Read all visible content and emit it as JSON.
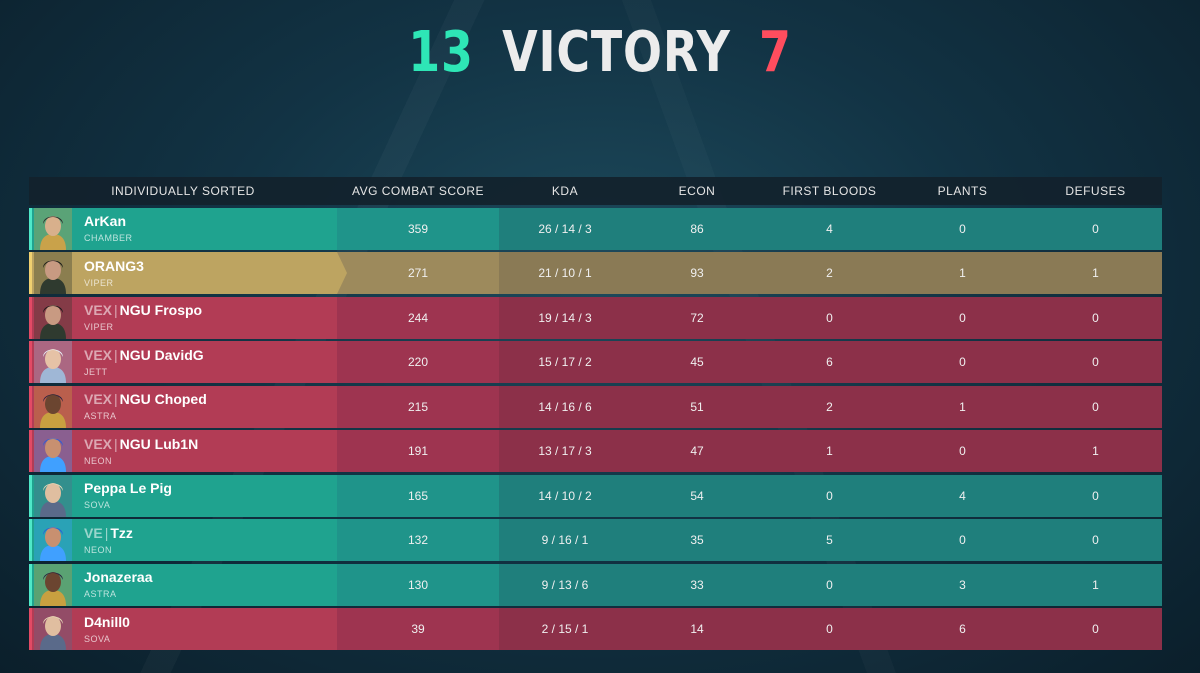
{
  "header_banner": {
    "team_score": "13",
    "result": "VICTORY",
    "enemy_score": "7",
    "colors": {
      "team": "#2ee6b6",
      "enemy": "#ff4d5e"
    }
  },
  "table": {
    "columns": [
      "INDIVIDUALLY SORTED",
      "AVG COMBAT SCORE",
      "KDA",
      "ECON",
      "FIRST BLOODS",
      "PLANTS",
      "DEFUSES"
    ],
    "rows": [
      {
        "team": "ally",
        "highlight": false,
        "tag": "",
        "name": "ArKan",
        "agent": "CHAMBER",
        "acs": "359",
        "kda": "26 / 14 / 3",
        "econ": "86",
        "first_bloods": "4",
        "plants": "0",
        "defuses": "0"
      },
      {
        "team": "self",
        "highlight": true,
        "tag": "",
        "name": "ORANG3",
        "agent": "VIPER",
        "acs": "271",
        "kda": "21 / 10 / 1",
        "econ": "93",
        "first_bloods": "2",
        "plants": "1",
        "defuses": "1"
      },
      {
        "team": "enemy",
        "highlight": false,
        "tag": "VEX",
        "name": "NGU Frospo",
        "agent": "VIPER",
        "acs": "244",
        "kda": "19 / 14 / 3",
        "econ": "72",
        "first_bloods": "0",
        "plants": "0",
        "defuses": "0"
      },
      {
        "team": "enemy",
        "highlight": false,
        "tag": "VEX",
        "name": "NGU DavidG",
        "agent": "JETT",
        "acs": "220",
        "kda": "15 / 17 / 2",
        "econ": "45",
        "first_bloods": "6",
        "plants": "0",
        "defuses": "0"
      },
      {
        "team": "enemy",
        "highlight": false,
        "tag": "VEX",
        "name": "NGU Choped",
        "agent": "ASTRA",
        "acs": "215",
        "kda": "14 / 16 / 6",
        "econ": "51",
        "first_bloods": "2",
        "plants": "1",
        "defuses": "0"
      },
      {
        "team": "enemy",
        "highlight": false,
        "tag": "VEX",
        "name": "NGU Lub1N",
        "agent": "NEON",
        "acs": "191",
        "kda": "13 / 17 / 3",
        "econ": "47",
        "first_bloods": "1",
        "plants": "0",
        "defuses": "1"
      },
      {
        "team": "ally",
        "highlight": false,
        "tag": "",
        "name": "Peppa Le Pig",
        "agent": "SOVA",
        "acs": "165",
        "kda": "14 / 10 / 2",
        "econ": "54",
        "first_bloods": "0",
        "plants": "4",
        "defuses": "0"
      },
      {
        "team": "ally",
        "highlight": false,
        "tag": "VE",
        "name": "Tzz",
        "agent": "NEON",
        "acs": "132",
        "kda": "9 / 16 / 1",
        "econ": "35",
        "first_bloods": "5",
        "plants": "0",
        "defuses": "0"
      },
      {
        "team": "ally",
        "highlight": false,
        "tag": "",
        "name": "Jonazeraa",
        "agent": "ASTRA",
        "acs": "130",
        "kda": "9 / 13 / 6",
        "econ": "33",
        "first_bloods": "0",
        "plants": "3",
        "defuses": "1"
      },
      {
        "team": "enemy",
        "highlight": false,
        "tag": "",
        "name": "D4nill0",
        "agent": "SOVA",
        "acs": "39",
        "kda": "2 / 15 / 1",
        "econ": "14",
        "first_bloods": "0",
        "plants": "6",
        "defuses": "0"
      }
    ]
  },
  "agent_icons": {
    "CHAMBER": {
      "icon": "chamber-agent-icon",
      "hair": "#2b2b2b",
      "skin": "#d8b08c",
      "accent": "#c9a24a"
    },
    "VIPER": {
      "icon": "viper-agent-icon",
      "hair": "#1a1a1a",
      "skin": "#c89a82",
      "accent": "#2f3a2f"
    },
    "JETT": {
      "icon": "jett-agent-icon",
      "hair": "#e8eef5",
      "skin": "#e6c2a6",
      "accent": "#9fb7d6"
    },
    "ASTRA": {
      "icon": "astra-agent-icon",
      "hair": "#2a2240",
      "skin": "#6b4530",
      "accent": "#c8a040"
    },
    "NEON": {
      "icon": "neon-agent-icon",
      "hair": "#2c5ed8",
      "skin": "#c89070",
      "accent": "#40a0ff"
    },
    "SOVA": {
      "icon": "sova-agent-icon",
      "hair": "#e6d8b8",
      "skin": "#e0bea0",
      "accent": "#5a6a8a"
    }
  }
}
